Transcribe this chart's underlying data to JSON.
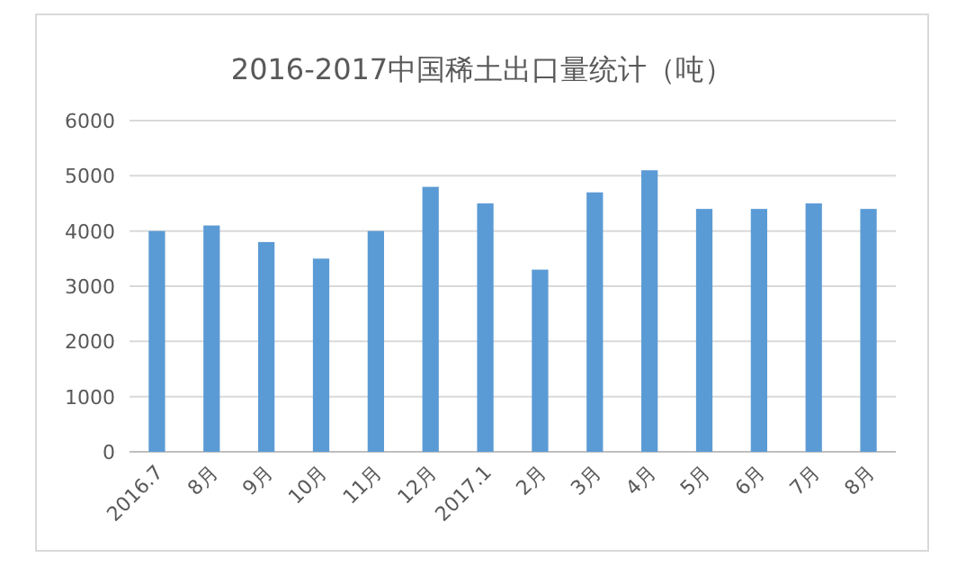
{
  "chart_data": {
    "type": "bar",
    "title": "2016-2017中国稀土出口量统计（吨）",
    "categories": [
      "2016.7",
      "8月",
      "9月",
      "10月",
      "11月",
      "12月",
      "2017.1",
      "2月",
      "3月",
      "4月",
      "5月",
      "6月",
      "7月",
      "8月"
    ],
    "values": [
      4000,
      4100,
      3800,
      3500,
      4000,
      4800,
      4500,
      3300,
      4700,
      5100,
      4400,
      4400,
      4500,
      4400
    ],
    "color": "#5b9bd5",
    "ylim": [
      0,
      6000
    ],
    "yticks": [
      0,
      1000,
      2000,
      3000,
      4000,
      5000,
      6000
    ],
    "grid": "y"
  }
}
